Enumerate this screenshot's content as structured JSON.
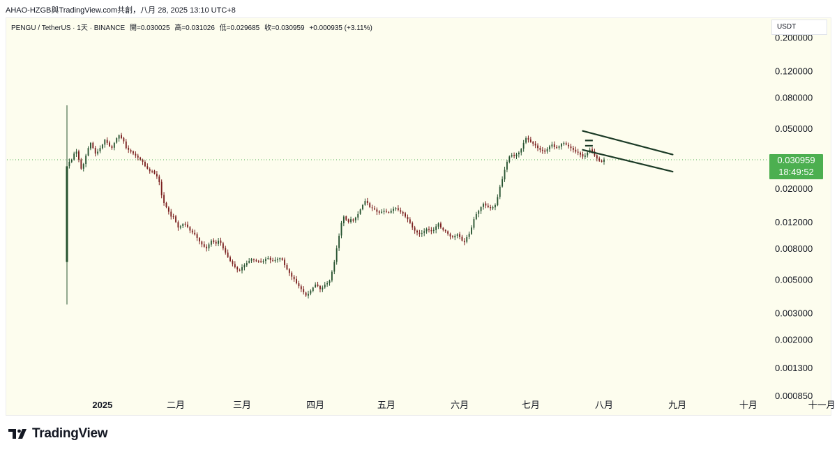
{
  "header": {
    "title": "AHAO-HZGB與TradingView.com共創，八月 28, 2025 13:10 UTC+8"
  },
  "legend": {
    "symbol": "PENGU / TetherUS · 1天 · BINANCE",
    "open": "開=0.030025",
    "high": "高=0.031026",
    "low": "低=0.029685",
    "close": "收=0.030959",
    "change": "+0.000935 (+3.11%)"
  },
  "currency": "USDT",
  "price_tag": {
    "price": "0.030959",
    "countdown": "18:49:52"
  },
  "footer": {
    "brand": "TradingView"
  },
  "colors": {
    "up": "#26522f",
    "down": "#7a1e1e",
    "channel": "#1b3a26",
    "price_line": "#4caf50",
    "background": "#fdfdee"
  },
  "chart_data": {
    "type": "candlestick",
    "scale": "log",
    "ylim": [
      0.0007,
      0.26
    ],
    "y_ticks": [
      "0.200000",
      "0.120000",
      "0.080000",
      "0.050000",
      "0.020000",
      "0.012000",
      "0.008000",
      "0.005000",
      "0.003000",
      "0.002000",
      "0.001300",
      "0.000850"
    ],
    "x_ticks": [
      {
        "label": "2025",
        "date": "2025-01-01",
        "bold": true
      },
      {
        "label": "二月",
        "date": "2025-02-01"
      },
      {
        "label": "三月",
        "date": "2025-03-01"
      },
      {
        "label": "四月",
        "date": "2025-04-01"
      },
      {
        "label": "五月",
        "date": "2025-05-01"
      },
      {
        "label": "六月",
        "date": "2025-06-01"
      },
      {
        "label": "七月",
        "date": "2025-07-01"
      },
      {
        "label": "八月",
        "date": "2025-08-01"
      },
      {
        "label": "九月",
        "date": "2025-09-01"
      },
      {
        "label": "十月",
        "date": "2025-10-01"
      },
      {
        "label": "十一月",
        "date": "2025-11-01"
      }
    ],
    "series_start": "2024-12-17",
    "first_candle": {
      "open": 0.0065,
      "high": 0.071,
      "low": 0.0034,
      "close": 0.028
    },
    "closes": [
      0.028,
      0.03,
      0.031,
      0.034,
      0.035,
      0.031,
      0.027,
      0.029,
      0.033,
      0.037,
      0.04,
      0.037,
      0.034,
      0.035,
      0.037,
      0.039,
      0.042,
      0.04,
      0.038,
      0.037,
      0.04,
      0.043,
      0.045,
      0.043,
      0.041,
      0.037,
      0.036,
      0.035,
      0.034,
      0.033,
      0.032,
      0.031,
      0.03,
      0.028,
      0.027,
      0.026,
      0.026,
      0.025,
      0.024,
      0.022,
      0.018,
      0.016,
      0.015,
      0.014,
      0.013,
      0.013,
      0.012,
      0.011,
      0.0112,
      0.0116,
      0.0115,
      0.0111,
      0.0105,
      0.0102,
      0.0099,
      0.0094,
      0.0089,
      0.0085,
      0.0082,
      0.008,
      0.0085,
      0.009,
      0.0088,
      0.0086,
      0.009,
      0.0087,
      0.008,
      0.0075,
      0.007,
      0.0066,
      0.0063,
      0.006,
      0.0058,
      0.0057,
      0.006,
      0.0062,
      0.0064,
      0.0066,
      0.0068,
      0.0067,
      0.0066,
      0.0066,
      0.0065,
      0.0066,
      0.0068,
      0.0069,
      0.0067,
      0.0066,
      0.0067,
      0.0068,
      0.0069,
      0.0067,
      0.0062,
      0.0058,
      0.0055,
      0.0052,
      0.005,
      0.0047,
      0.0045,
      0.0043,
      0.0041,
      0.0039,
      0.004,
      0.0042,
      0.0044,
      0.0046,
      0.0045,
      0.0043,
      0.0044,
      0.0046,
      0.0047,
      0.0049,
      0.0056,
      0.0065,
      0.008,
      0.0097,
      0.0118,
      0.013,
      0.0124,
      0.012,
      0.0125,
      0.0122,
      0.0128,
      0.0135,
      0.0145,
      0.0155,
      0.0165,
      0.016,
      0.015,
      0.0148,
      0.0145,
      0.014,
      0.0138,
      0.014,
      0.0142,
      0.014,
      0.0138,
      0.0142,
      0.0146,
      0.0148,
      0.0144,
      0.014,
      0.0136,
      0.013,
      0.0125,
      0.0118,
      0.011,
      0.0105,
      0.0102,
      0.01,
      0.0101,
      0.0104,
      0.0108,
      0.0106,
      0.0104,
      0.0106,
      0.0112,
      0.0117,
      0.011,
      0.0106,
      0.0104,
      0.01,
      0.0096,
      0.0095,
      0.0097,
      0.0099,
      0.0095,
      0.009,
      0.0088,
      0.0095,
      0.01,
      0.011,
      0.0125,
      0.0135,
      0.0142,
      0.015,
      0.0158,
      0.0154,
      0.015,
      0.0148,
      0.015,
      0.0155,
      0.0175,
      0.0205,
      0.023,
      0.0265,
      0.03,
      0.0325,
      0.0332,
      0.0328,
      0.0335,
      0.0345,
      0.0365,
      0.04,
      0.043,
      0.042,
      0.0405,
      0.0395,
      0.0385,
      0.037,
      0.036,
      0.0355,
      0.035,
      0.0365,
      0.038,
      0.039,
      0.0375,
      0.037,
      0.038,
      0.0395,
      0.04,
      0.039,
      0.038,
      0.037,
      0.036,
      0.035,
      0.0345,
      0.0335,
      0.0325,
      0.033,
      0.0345,
      0.036,
      0.035,
      0.033,
      0.0315,
      0.0305,
      0.03,
      0.031
    ],
    "channel": {
      "upper": [
        {
          "date": "2025-07-23",
          "price": 0.048
        },
        {
          "date": "2025-08-30",
          "price": 0.0335
        }
      ],
      "lower": [
        {
          "date": "2025-07-23",
          "price": 0.036
        },
        {
          "date": "2025-08-30",
          "price": 0.0258
        }
      ],
      "dash_marks": [
        {
          "date": "2025-07-24",
          "price": 0.0415
        },
        {
          "date": "2025-07-24",
          "price": 0.0383
        }
      ]
    },
    "last_price": 0.030959
  }
}
